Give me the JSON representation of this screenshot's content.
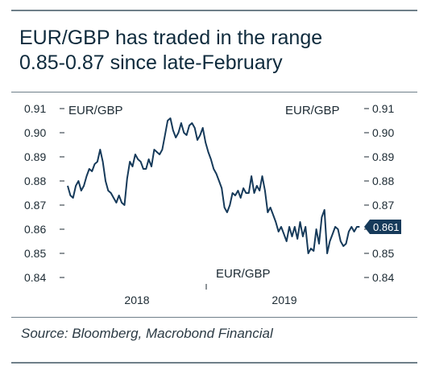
{
  "title_line1": "EUR/GBP has traded in the range",
  "title_line2": "0.85-0.87 since late-February",
  "source": "Source: Bloomberg, Macrobond Financial",
  "colors": {
    "line": "#163a5a",
    "badge": "#163a5a",
    "rule": "#6f7f89"
  },
  "chart_data": {
    "type": "line",
    "title": "EUR/GBP has traded in the range 0.85-0.87 since late-February",
    "left_axis_label": "EUR/GBP",
    "right_axis_label": "EUR/GBP",
    "bottom_label": "EUR/GBP",
    "ylim": [
      0.84,
      0.91
    ],
    "yticks": [
      "0.84",
      "0.85",
      "0.86",
      "0.87",
      "0.88",
      "0.89",
      "0.90",
      "0.91"
    ],
    "xlim": [
      2017.6,
      2019.77
    ],
    "x_tick_labels": [
      "2018",
      "2019"
    ],
    "last_value_label": "0.861",
    "grid": false,
    "series": [
      {
        "x": [
          2017.6,
          2017.62,
          2017.64,
          2017.66,
          2017.68,
          2017.7,
          2017.72,
          2017.74,
          2017.76,
          2017.78,
          2017.8,
          2017.82,
          2017.84,
          2017.86,
          2017.88,
          2017.9,
          2017.92,
          2017.94,
          2017.96,
          2017.98,
          2018.0,
          2018.02,
          2018.04,
          2018.06,
          2018.08,
          2018.1,
          2018.12,
          2018.14,
          2018.16,
          2018.18,
          2018.2,
          2018.22,
          2018.24,
          2018.26,
          2018.28,
          2018.3,
          2018.32,
          2018.34,
          2018.36,
          2018.38,
          2018.4,
          2018.42,
          2018.44,
          2018.46,
          2018.48,
          2018.5,
          2018.52,
          2018.54,
          2018.56,
          2018.58,
          2018.6,
          2018.62,
          2018.64,
          2018.66,
          2018.68,
          2018.7,
          2018.72,
          2018.74,
          2018.76,
          2018.78,
          2018.8,
          2018.82,
          2018.84,
          2018.86,
          2018.88,
          2018.9,
          2018.92,
          2018.94,
          2018.96,
          2018.98,
          2019.0,
          2019.02,
          2019.04,
          2019.06,
          2019.08,
          2019.1,
          2019.12,
          2019.14,
          2019.16,
          2019.18,
          2019.2,
          2019.22,
          2019.24,
          2019.26,
          2019.28,
          2019.3,
          2019.32,
          2019.34,
          2019.36,
          2019.38,
          2019.4,
          2019.42,
          2019.44,
          2019.46,
          2019.48,
          2019.5,
          2019.52,
          2019.54,
          2019.56,
          2019.58,
          2019.6,
          2019.62,
          2019.64,
          2019.66,
          2019.68,
          2019.7,
          2019.72,
          2019.74,
          2019.76
        ],
        "y": [
          0.878,
          0.874,
          0.873,
          0.878,
          0.88,
          0.876,
          0.878,
          0.882,
          0.885,
          0.884,
          0.887,
          0.888,
          0.893,
          0.888,
          0.88,
          0.876,
          0.875,
          0.873,
          0.871,
          0.874,
          0.871,
          0.87,
          0.881,
          0.888,
          0.886,
          0.891,
          0.889,
          0.888,
          0.885,
          0.885,
          0.889,
          0.886,
          0.893,
          0.892,
          0.891,
          0.893,
          0.899,
          0.905,
          0.906,
          0.901,
          0.898,
          0.9,
          0.904,
          0.9,
          0.899,
          0.903,
          0.904,
          0.902,
          0.897,
          0.899,
          0.902,
          0.896,
          0.892,
          0.889,
          0.885,
          0.883,
          0.88,
          0.877,
          0.869,
          0.867,
          0.87,
          0.875,
          0.874,
          0.876,
          0.873,
          0.877,
          0.875,
          0.875,
          0.882,
          0.875,
          0.878,
          0.876,
          0.882,
          0.876,
          0.867,
          0.869,
          0.866,
          0.863,
          0.859,
          0.861,
          0.858,
          0.855,
          0.861,
          0.857,
          0.861,
          0.856,
          0.863,
          0.857,
          0.861,
          0.85,
          0.852,
          0.851,
          0.86,
          0.854,
          0.865,
          0.868,
          0.85,
          0.855,
          0.858,
          0.861,
          0.86,
          0.855,
          0.853,
          0.854,
          0.859,
          0.861,
          0.859,
          0.861,
          0.861
        ]
      }
    ]
  }
}
